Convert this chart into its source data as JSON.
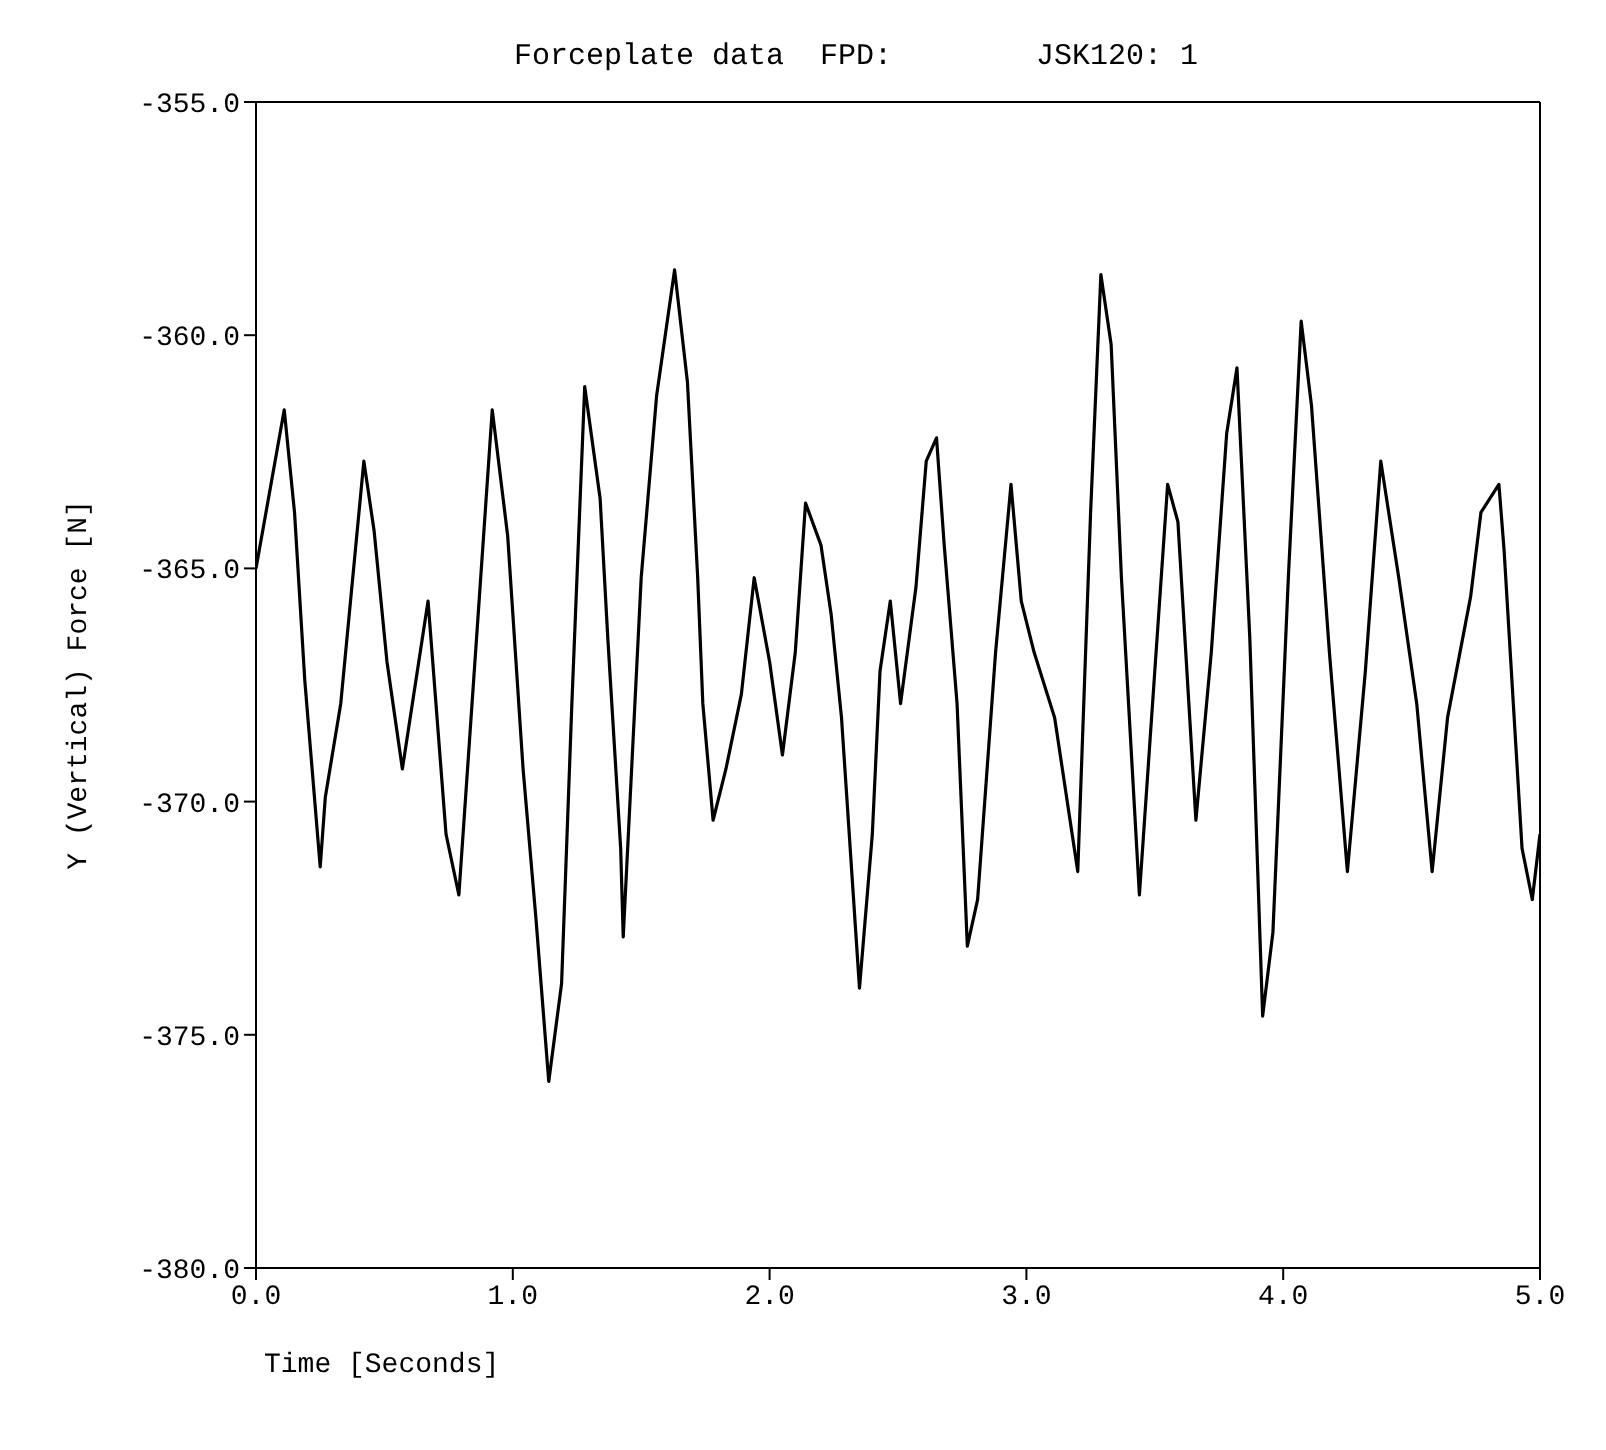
{
  "chart_data": {
    "type": "line",
    "title": "Forceplate data  FPD:        JSK120: 1",
    "xlabel": "Time  [Seconds]",
    "ylabel": "Y (Vertical) Force [N]",
    "x": [
      0,
      0.11,
      0.15,
      0.19,
      0.25,
      0.27,
      0.33,
      0.42,
      0.46,
      0.51,
      0.57,
      0.67,
      0.74,
      0.79,
      0.87,
      0.92,
      0.98,
      1.04,
      1.09,
      1.14,
      1.19,
      1.23,
      1.28,
      1.34,
      1.37,
      1.42,
      1.43,
      1.45,
      1.5,
      1.56,
      1.63,
      1.68,
      1.72,
      1.74,
      1.78,
      1.83,
      1.89,
      1.94,
      2.0,
      2.05,
      2.1,
      2.14,
      2.2,
      2.24,
      2.28,
      2.35,
      2.4,
      2.43,
      2.47,
      2.51,
      2.57,
      2.61,
      2.65,
      2.68,
      2.73,
      2.77,
      2.81,
      2.88,
      2.94,
      2.98,
      3.03,
      3.11,
      3.2,
      3.25,
      3.29,
      3.33,
      3.37,
      3.44,
      3.5,
      3.55,
      3.59,
      3.66,
      3.72,
      3.78,
      3.82,
      3.87,
      3.92,
      3.96,
      4.02,
      4.07,
      4.11,
      4.18,
      4.25,
      4.32,
      4.38,
      4.45,
      4.52,
      4.58,
      4.64,
      4.73,
      4.77,
      4.84,
      4.86,
      4.93,
      4.97,
      5.0
    ],
    "series": [
      {
        "color": "#000000",
        "values": [
          -365,
          -361.6,
          -363.8,
          -367.4,
          -371.4,
          -369.9,
          -367.9,
          -362.7,
          -364.2,
          -367,
          -369.3,
          -365.7,
          -370.7,
          -372,
          -365.6,
          -361.6,
          -364.3,
          -369.3,
          -372.5,
          -376,
          -373.9,
          -367.9,
          -361.1,
          -363.5,
          -366.5,
          -371,
          -372.9,
          -370.7,
          -365.2,
          -361.3,
          -358.6,
          -361,
          -365.2,
          -367.9,
          -370.4,
          -369.3,
          -367.7,
          -365.2,
          -367,
          -369,
          -366.8,
          -363.6,
          -364.5,
          -366,
          -368.2,
          -374,
          -370.7,
          -367.2,
          -365.7,
          -367.9,
          -365.4,
          -362.7,
          -362.2,
          -364.5,
          -367.9,
          -373.1,
          -372.1,
          -366.8,
          -363.2,
          -365.7,
          -366.8,
          -368.2,
          -371.5,
          -363.8,
          -358.7,
          -360.2,
          -365.2,
          -372,
          -367.2,
          -363.2,
          -364,
          -370.4,
          -366.8,
          -362.1,
          -360.7,
          -366.5,
          -374.6,
          -372.8,
          -365.2,
          -359.7,
          -361.5,
          -366.8,
          -371.5,
          -367.2,
          -362.7,
          -365.2,
          -367.9,
          -371.5,
          -368.2,
          -365.6,
          -363.8,
          -363.2,
          -364.6,
          -371,
          -372.1,
          -370.7
        ]
      }
    ],
    "xlim": [
      0,
      5
    ],
    "xticks": [
      {
        "value": 0,
        "label": "0.0"
      },
      {
        "value": 1,
        "label": "1.0"
      },
      {
        "value": 2,
        "label": "2.0"
      },
      {
        "value": 3,
        "label": "3.0"
      },
      {
        "value": 4,
        "label": "4.0"
      },
      {
        "value": 5,
        "label": "5.0"
      }
    ],
    "ylim": [
      -380,
      -355
    ],
    "yticks": [
      {
        "value": -380,
        "label": "-380.0"
      },
      {
        "value": -375,
        "label": "-375.0"
      },
      {
        "value": -370,
        "label": "-370.0"
      },
      {
        "value": -365,
        "label": "-365.0"
      },
      {
        "value": -360,
        "label": "-360.0"
      },
      {
        "value": -355,
        "label": "-355.0"
      }
    ],
    "grid": false,
    "legend": false,
    "marker": "none",
    "line_style": "solid"
  }
}
